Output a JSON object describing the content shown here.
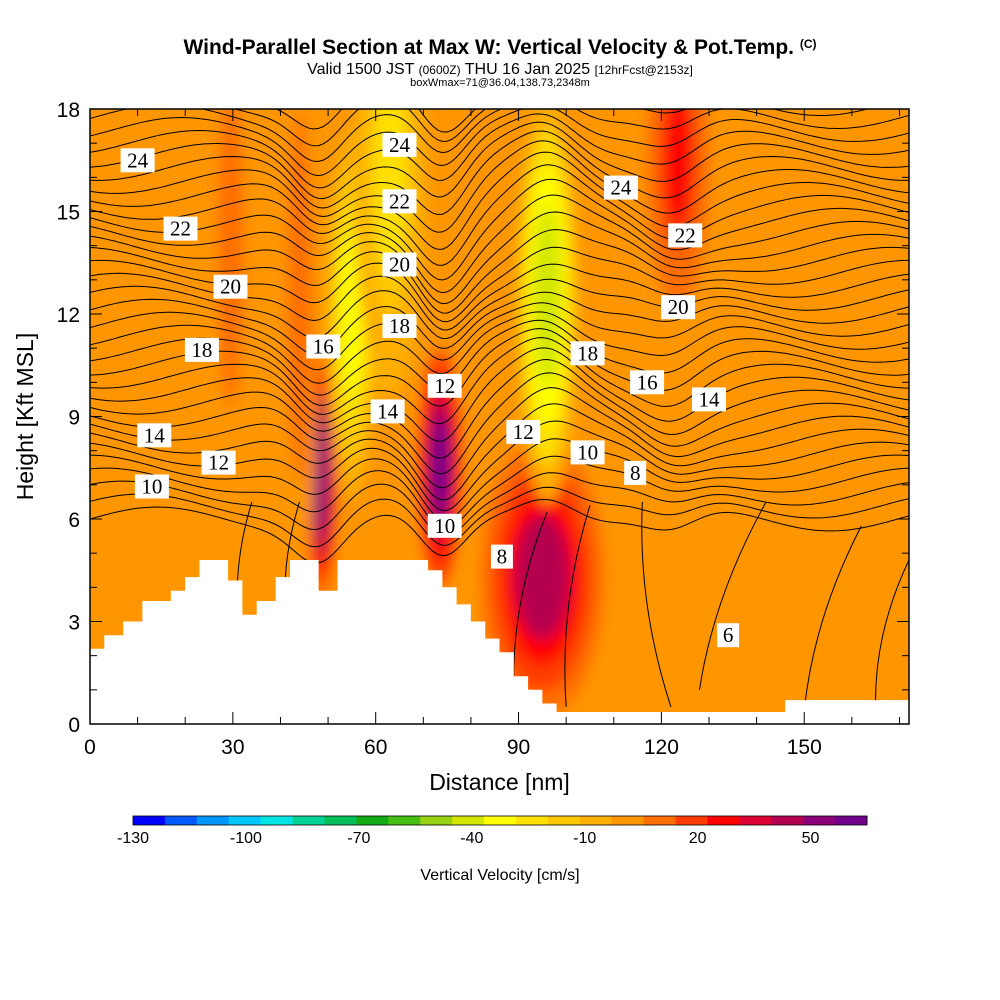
{
  "header": {
    "title": "Wind-Parallel Section at Max W: Vertical Velocity & Pot.Temp.",
    "copyright": "(C)",
    "valid_prefix": "Valid 1500 JST",
    "valid_utc": "(0600Z)",
    "valid_date": "THU 16 Jan 2025",
    "forecast": "[12hrFcst@2153z]",
    "box_info": "boxWmax=71@36.04,138.73,2348m"
  },
  "chart_data": {
    "type": "heatmap",
    "xlabel": "Distance [nm]",
    "ylabel": "Height [Kft MSL]",
    "xlim": [
      0,
      172
    ],
    "ylim": [
      0,
      18
    ],
    "x_ticks": [
      "0",
      "30",
      "60",
      "90",
      "120",
      "150"
    ],
    "y_ticks": [
      "0",
      "3",
      "6",
      "9",
      "12",
      "15",
      "18"
    ],
    "colorbar": {
      "label": "Vertical Velocity [cm/s]",
      "tick_labels": [
        "-130",
        "-100",
        "-70",
        "-40",
        "-10",
        "20",
        "50"
      ],
      "tick_values": [
        -130,
        -100,
        -70,
        -40,
        -10,
        20,
        50
      ],
      "range": [
        -130,
        65
      ],
      "colors": [
        "#0000ff",
        "#005aff",
        "#0096ff",
        "#00c8ff",
        "#00e6e6",
        "#00d296",
        "#00be5a",
        "#14aa14",
        "#46be14",
        "#96d214",
        "#d2e600",
        "#ffff00",
        "#ffe100",
        "#ffc800",
        "#ffaf00",
        "#ff9600",
        "#ff6e00",
        "#ff3c00",
        "#ff0000",
        "#dc0032",
        "#b40050",
        "#8c0078",
        "#6e008c"
      ]
    },
    "potential_temperature_contour_labels": [
      {
        "text": "24",
        "x": 10,
        "y": 16.5
      },
      {
        "text": "22",
        "x": 19,
        "y": 14.5
      },
      {
        "text": "20",
        "x": 29.5,
        "y": 12.8
      },
      {
        "text": "18",
        "x": 23.5,
        "y": 10.95
      },
      {
        "text": "16",
        "x": 49,
        "y": 11.05
      },
      {
        "text": "14",
        "x": 13.5,
        "y": 8.45
      },
      {
        "text": "12",
        "x": 27,
        "y": 7.65
      },
      {
        "text": "10",
        "x": 13,
        "y": 6.95
      },
      {
        "text": "24",
        "x": 65,
        "y": 16.95
      },
      {
        "text": "22",
        "x": 65,
        "y": 15.3
      },
      {
        "text": "20",
        "x": 65,
        "y": 13.45
      },
      {
        "text": "18",
        "x": 65,
        "y": 11.65
      },
      {
        "text": "14",
        "x": 62.5,
        "y": 9.15
      },
      {
        "text": "12",
        "x": 74.5,
        "y": 9.9
      },
      {
        "text": "12",
        "x": 91,
        "y": 8.55
      },
      {
        "text": "10",
        "x": 74.5,
        "y": 5.8
      },
      {
        "text": "8",
        "x": 86.5,
        "y": 4.9
      },
      {
        "text": "24",
        "x": 111.5,
        "y": 15.7
      },
      {
        "text": "22",
        "x": 125,
        "y": 14.3
      },
      {
        "text": "20",
        "x": 123.5,
        "y": 12.2
      },
      {
        "text": "18",
        "x": 104.5,
        "y": 10.85
      },
      {
        "text": "16",
        "x": 117,
        "y": 10.0
      },
      {
        "text": "14",
        "x": 130,
        "y": 9.5
      },
      {
        "text": "10",
        "x": 104.5,
        "y": 7.95
      },
      {
        "text": "8",
        "x": 114.5,
        "y": 7.35
      },
      {
        "text": "6",
        "x": 134,
        "y": 2.6
      }
    ],
    "vertical_velocity_features": [
      {
        "x": 48.5,
        "y": 7.3,
        "sx": 1.6,
        "sy": 1.8,
        "value": 55
      },
      {
        "x": 73.5,
        "y": 7.5,
        "sx": 2.0,
        "sy": 1.6,
        "value": 58
      },
      {
        "x": 95,
        "y": 4.3,
        "sx": 6.0,
        "sy": 1.9,
        "value": 40
      },
      {
        "x": 123.5,
        "y": 16.5,
        "sx": 3.0,
        "sy": 2.0,
        "value": 28
      },
      {
        "x": 29.5,
        "y": 14.0,
        "sx": 2.0,
        "sy": 3.5,
        "value": 10
      },
      {
        "x": 44,
        "y": 12.5,
        "sx": 1.8,
        "sy": 4.0,
        "value": 8
      },
      {
        "x": 55,
        "y": 12.0,
        "sx": 2.5,
        "sy": 2.5,
        "value": -30
      },
      {
        "x": 96,
        "y": 12.5,
        "sx": 3.0,
        "sy": 2.8,
        "value": -45
      },
      {
        "x": 63,
        "y": 16.0,
        "sx": 3.5,
        "sy": 3.0,
        "value": -20
      }
    ]
  }
}
